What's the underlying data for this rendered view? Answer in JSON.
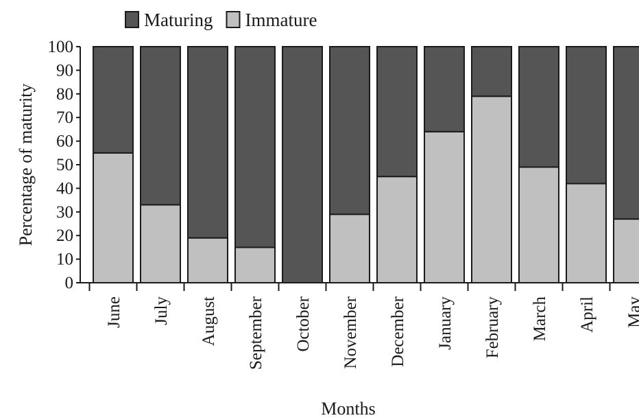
{
  "chart_data": {
    "type": "bar",
    "stacked": true,
    "xlabel": "Months",
    "ylabel": "Percentage of maturity",
    "ylim": [
      0,
      100
    ],
    "yticks": [
      0,
      10,
      20,
      30,
      40,
      50,
      60,
      70,
      80,
      90,
      100
    ],
    "grid": false,
    "legend_position": "top-left",
    "categories": [
      "June",
      "July",
      "August",
      "September",
      "October",
      "November",
      "December",
      "January",
      "February",
      "March",
      "April",
      "May"
    ],
    "series": [
      {
        "name": "Immature",
        "color": "#c0c0c0",
        "values": [
          55,
          33,
          19,
          15,
          0,
          29,
          45,
          64,
          79,
          49,
          42,
          27
        ]
      },
      {
        "name": "Maturing",
        "color": "#555555",
        "values": [
          45,
          67,
          81,
          85,
          100,
          71,
          55,
          36,
          21,
          51,
          58,
          73
        ]
      }
    ],
    "legend": [
      {
        "name": "Maturing",
        "color": "#555555"
      },
      {
        "name": "Immature",
        "color": "#c0c0c0"
      }
    ]
  }
}
